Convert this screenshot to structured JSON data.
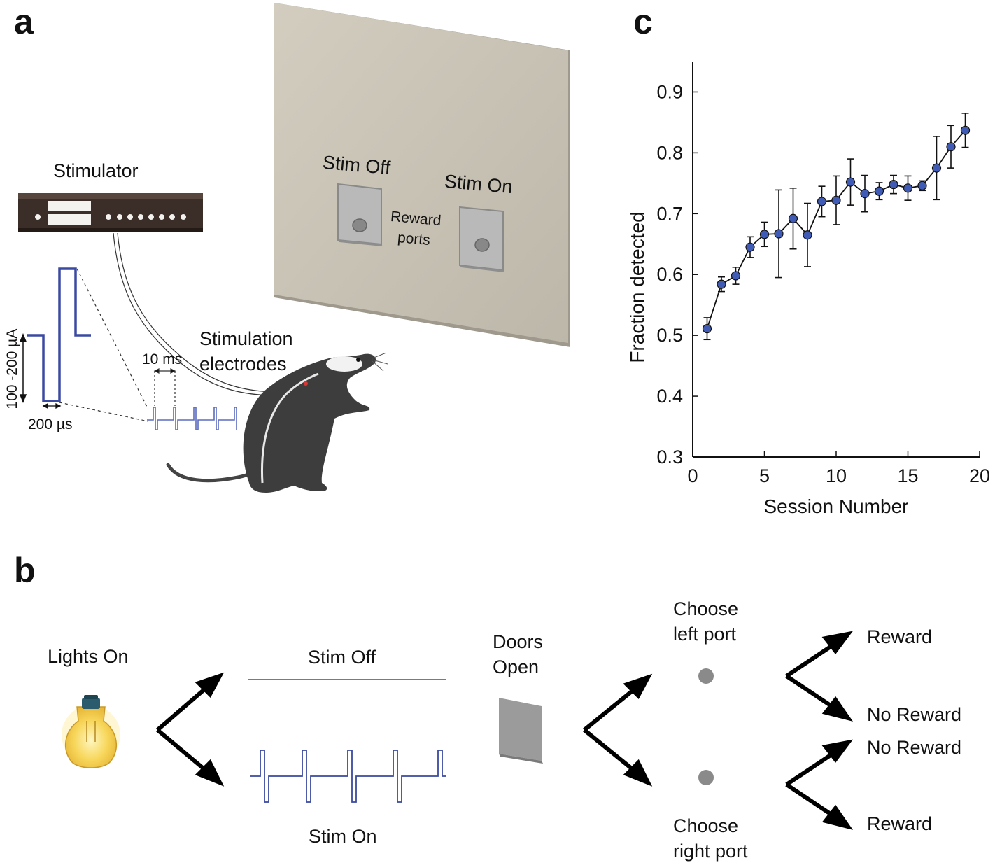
{
  "panels": {
    "a": "a",
    "b": "b",
    "c": "c"
  },
  "panel_a": {
    "stimulator_label": "Stimulator",
    "amplitude_label": "100 -200 µA",
    "pulse_width_label": "200 µs",
    "period_label": "10 ms",
    "electrodes_label_line1": "Stimulation",
    "electrodes_label_line2": "electrodes",
    "stim_off_label": "Stim Off",
    "stim_on_label": "Stim On",
    "reward_ports_line1": "Reward",
    "reward_ports_line2": "ports",
    "wall_color": "#c9c3b5",
    "waveform_color": "#3a4aa0",
    "icons": [
      "stimulator-icon",
      "rat-icon",
      "wall-panel-icon"
    ]
  },
  "panel_b": {
    "lights_on": "Lights On",
    "stim_off": "Stim Off",
    "stim_on": "Stim On",
    "doors_open_line1": "Doors",
    "doors_open_line2": "Open",
    "choose_left_line1": "Choose",
    "choose_left_line2": "left port",
    "choose_right_line1": "Choose",
    "choose_right_line2": "right port",
    "outcome_left_top": "Reward",
    "outcome_left_bottom": "No Reward",
    "outcome_right_top": "No Reward",
    "outcome_right_bottom": "Reward",
    "icons": [
      "light-bulb-icon",
      "door-icon",
      "arrow-icon",
      "port-icon"
    ]
  },
  "chart_data": {
    "type": "line",
    "xlabel": "Session Number",
    "ylabel": "Fraction detected",
    "xlim": [
      0,
      20
    ],
    "ylim": [
      0.3,
      0.95
    ],
    "xticks": [
      0,
      5,
      10,
      15,
      20
    ],
    "yticks": [
      0.3,
      0.4,
      0.5,
      0.6,
      0.7,
      0.8,
      0.9
    ],
    "grid": false,
    "marker_color": "#3f5bb5",
    "series": [
      {
        "x": [
          1,
          2,
          3,
          4,
          5,
          6,
          7,
          8,
          9,
          10,
          11,
          12,
          13,
          14,
          15,
          16,
          17,
          18,
          19
        ],
        "y": [
          0.511,
          0.584,
          0.598,
          0.645,
          0.666,
          0.667,
          0.692,
          0.665,
          0.72,
          0.722,
          0.752,
          0.733,
          0.737,
          0.748,
          0.742,
          0.746,
          0.775,
          0.81,
          0.837
        ],
        "err": [
          0.018,
          0.012,
          0.014,
          0.017,
          0.02,
          0.072,
          0.05,
          0.052,
          0.025,
          0.04,
          0.038,
          0.03,
          0.014,
          0.015,
          0.02,
          0.008,
          0.052,
          0.035,
          0.028
        ]
      }
    ]
  }
}
